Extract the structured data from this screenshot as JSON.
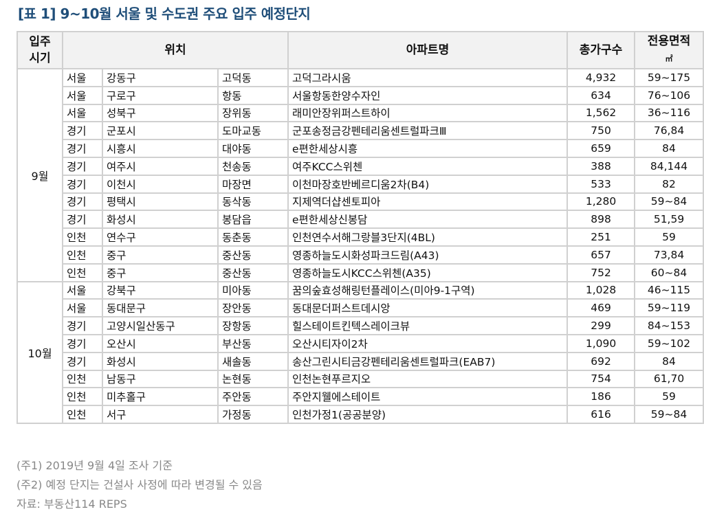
{
  "title": "[표 1] 9~10월 서울 및 수도권 주요 입주 예정단지",
  "table": {
    "headers": {
      "period_line1": "입주",
      "period_line2": "시기",
      "location": "위치",
      "apartment": "아파트명",
      "households": "총가구수",
      "area_line1": "전용면적",
      "area_unit": "㎡"
    },
    "groups": [
      {
        "period": "9월",
        "rows": [
          [
            "서울",
            "강동구",
            "고덕동",
            "고덕그라시움",
            "4,932",
            "59~175"
          ],
          [
            "서울",
            "구로구",
            "항동",
            "서울항동한양수자인",
            "634",
            "76~106"
          ],
          [
            "서울",
            "성북구",
            "장위동",
            "래미안장위퍼스트하이",
            "1,562",
            "36~116"
          ],
          [
            "경기",
            "군포시",
            "도마교동",
            "군포송정금강펜테리움센트럴파크Ⅲ",
            "750",
            "76,84"
          ],
          [
            "경기",
            "시흥시",
            "대야동",
            "e편한세상시흥",
            "659",
            "84"
          ],
          [
            "경기",
            "여주시",
            "천송동",
            "여주KCC스위첸",
            "388",
            "84,144"
          ],
          [
            "경기",
            "이천시",
            "마장면",
            "이천마장호반베르디움2차(B4)",
            "533",
            "82"
          ],
          [
            "경기",
            "평택시",
            "동삭동",
            "지제역더샵센토피아",
            "1,280",
            "59~84"
          ],
          [
            "경기",
            "화성시",
            "봉담읍",
            "e편한세상신봉담",
            "898",
            "51,59"
          ],
          [
            "인천",
            "연수구",
            "동춘동",
            "인천연수서해그랑블3단지(4BL)",
            "251",
            "59"
          ],
          [
            "인천",
            "중구",
            "중산동",
            "영종하늘도시화성파크드림(A43)",
            "657",
            "73,84"
          ],
          [
            "인천",
            "중구",
            "중산동",
            "영종하늘도시KCC스위첸(A35)",
            "752",
            "60~84"
          ]
        ]
      },
      {
        "period": "10월",
        "rows": [
          [
            "서울",
            "강북구",
            "미아동",
            "꿈의숲효성해링턴플레이스(미아9-1구역)",
            "1,028",
            "46~115"
          ],
          [
            "서울",
            "동대문구",
            "장안동",
            "동대문더퍼스트데시앙",
            "469",
            "59~119"
          ],
          [
            "경기",
            "고양시일산동구",
            "장항동",
            "힐스테이트킨텍스레이크뷰",
            "299",
            "84~153"
          ],
          [
            "경기",
            "오산시",
            "부산동",
            "오산시티자이2차",
            "1,090",
            "59~102"
          ],
          [
            "경기",
            "화성시",
            "새솔동",
            "송산그린시티금강펜테리움센트럴파크(EAB7)",
            "692",
            "84"
          ],
          [
            "인천",
            "남동구",
            "논현동",
            "인천논현푸르지오",
            "754",
            "61,70"
          ],
          [
            "인천",
            "미추홀구",
            "주안동",
            "주안지웰에스테이트",
            "186",
            "59"
          ],
          [
            "인천",
            "서구",
            "가정동",
            "인천가정1(공공분양)",
            "616",
            "59~84"
          ]
        ]
      }
    ]
  },
  "notes": [
    "(주1) 2019년 9월 4일 조사 기준",
    "(주2) 예정 단지는 건설사 사정에 따라 변경될 수 있음",
    "자료: 부동산114 REPS"
  ]
}
